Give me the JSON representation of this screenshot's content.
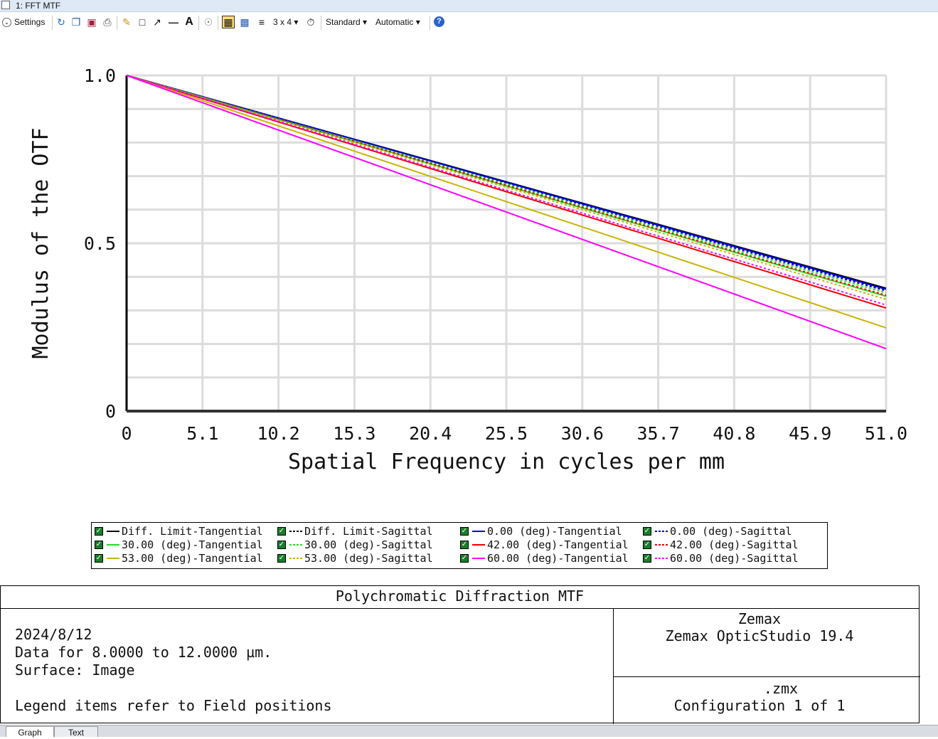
{
  "window": {
    "title": "1: FFT MTF"
  },
  "toolbar": {
    "settings_label": "Settings",
    "sampling_label": "3 x 4",
    "standard_label": "Standard",
    "automatic_label": "Automatic",
    "icons": [
      "refresh-icon",
      "copy-icon",
      "save-icon",
      "print-icon",
      "pencil-icon",
      "rectangle-icon",
      "arrow-icon",
      "line-icon",
      "text-icon",
      "lock-icon",
      "layout-icon",
      "window-icon",
      "layers-icon",
      "clock-icon",
      "help-icon"
    ]
  },
  "colors": {
    "diff": "#000000",
    "f0": "#0000dd",
    "f30": "#22dd22",
    "f42": "#ee0000",
    "f53": "#c8b400",
    "f60": "#ff00ff"
  },
  "chart_data": {
    "type": "line",
    "title": "",
    "xlabel": "Spatial Frequency in cycles per mm",
    "ylabel": "Modulus of the OTF",
    "xlim": [
      0,
      51.0
    ],
    "ylim": [
      0,
      1.0
    ],
    "x_ticks": [
      "0",
      "5.1",
      "10.2",
      "15.3",
      "20.4",
      "25.5",
      "30.6",
      "35.7",
      "40.8",
      "45.9",
      "51.0"
    ],
    "y_ticks": [
      "0",
      "0.5",
      "1.0"
    ],
    "grid": true,
    "x": [
      0,
      51.0
    ],
    "series": [
      {
        "name": "Diff. Limit-Tangential",
        "style": "solid",
        "color": "#000000",
        "values": [
          1.0,
          0.366
        ]
      },
      {
        "name": "Diff. Limit-Sagittal",
        "style": "dotted",
        "color": "#000000",
        "values": [
          1.0,
          0.362
        ]
      },
      {
        "name": "0.00 (deg)-Tangential",
        "style": "solid",
        "color": "#0000dd",
        "values": [
          1.0,
          0.363
        ]
      },
      {
        "name": "0.00 (deg)-Sagittal",
        "style": "dotted",
        "color": "#0000dd",
        "values": [
          1.0,
          0.358
        ]
      },
      {
        "name": "30.00 (deg)-Tangential",
        "style": "solid",
        "color": "#22dd22",
        "values": [
          1.0,
          0.342
        ]
      },
      {
        "name": "30.00 (deg)-Sagittal",
        "style": "dotted",
        "color": "#22dd22",
        "values": [
          1.0,
          0.352
        ]
      },
      {
        "name": "42.00 (deg)-Tangential",
        "style": "solid",
        "color": "#ee0000",
        "values": [
          1.0,
          0.307
        ]
      },
      {
        "name": "42.00 (deg)-Sagittal",
        "style": "dotted",
        "color": "#ee0000",
        "values": [
          1.0,
          0.345
        ]
      },
      {
        "name": "53.00 (deg)-Tangential",
        "style": "solid",
        "color": "#c8b400",
        "values": [
          1.0,
          0.248
        ]
      },
      {
        "name": "53.00 (deg)-Sagittal",
        "style": "dotted",
        "color": "#c8b400",
        "values": [
          1.0,
          0.333
        ]
      },
      {
        "name": "60.00 (deg)-Tangential",
        "style": "solid",
        "color": "#ff00ff",
        "values": [
          1.0,
          0.186
        ]
      },
      {
        "name": "60.00 (deg)-Sagittal",
        "style": "dotted",
        "color": "#ff00ff",
        "values": [
          1.0,
          0.316
        ]
      }
    ]
  },
  "info": {
    "title": "Polychromatic Diffraction MTF",
    "date": "2024/8/12",
    "data_line": "Data for 8.0000 to 12.0000 µm.",
    "surface_line": "Surface: Image",
    "legend_note": "Legend items refer to Field positions",
    "company": "Zemax",
    "product": "Zemax OpticStudio 19.4",
    "file": ".zmx",
    "config": "Configuration 1 of 1"
  },
  "tabs": [
    "Graph",
    "Text"
  ]
}
